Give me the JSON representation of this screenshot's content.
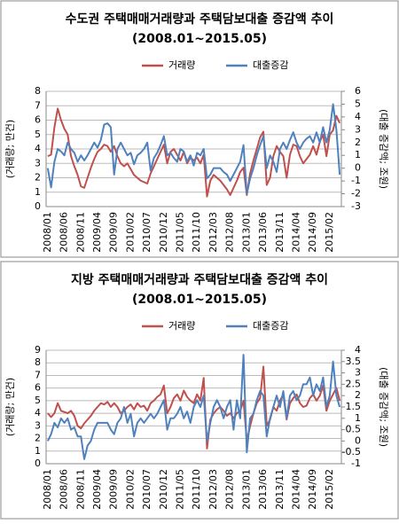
{
  "chart_data": [
    {
      "type": "line",
      "title": "수도권 주택매매거래량과 주택담보대출 증감액 추이",
      "subtitle": "(2008.01~2015.05)",
      "ylabel": "(거래량; 만건)",
      "y2label": "(대출 증감액; 조원)",
      "legend": "top",
      "grid": true,
      "categories": [
        "2008/01",
        null,
        null,
        null,
        null,
        "2008/06",
        null,
        null,
        null,
        null,
        "2008/11",
        null,
        null,
        null,
        null,
        "2009/04",
        null,
        null,
        null,
        null,
        "2009/09",
        null,
        null,
        null,
        null,
        "2010/02",
        null,
        null,
        null,
        null,
        "2010/07",
        null,
        null,
        null,
        null,
        "2010/12",
        null,
        null,
        null,
        null,
        "2011/05",
        null,
        null,
        null,
        null,
        "2011/10",
        null,
        null,
        null,
        null,
        "2012/03",
        null,
        null,
        null,
        null,
        "2012/08",
        null,
        null,
        null,
        null,
        "2013/01",
        null,
        null,
        null,
        null,
        "2013/06",
        null,
        null,
        null,
        null,
        "2013/11",
        null,
        null,
        null,
        null,
        "2014/04",
        null,
        null,
        null,
        null,
        "2014/09",
        null,
        null,
        null,
        null,
        "2015/02",
        null,
        null,
        null
      ],
      "ylim": [
        0,
        8
      ],
      "yticks": [
        0,
        1,
        2,
        3,
        4,
        5,
        6,
        7,
        8
      ],
      "y2lim": [
        -3,
        6
      ],
      "y2ticks": [
        -3,
        -2,
        -1,
        0,
        1,
        2,
        3,
        4,
        5,
        6
      ],
      "series": [
        {
          "name": "거래량",
          "color": "#c0504d",
          "values": [
            3.5,
            3.6,
            5.5,
            6.8,
            6.0,
            5.4,
            5.0,
            3.5,
            2.8,
            2.2,
            1.4,
            1.3,
            2.0,
            2.7,
            3.3,
            3.8,
            4.0,
            4.3,
            4.2,
            3.8,
            4.2,
            3.5,
            3.0,
            2.8,
            3.0,
            2.6,
            2.2,
            2.0,
            1.8,
            1.7,
            1.6,
            2.3,
            2.8,
            3.3,
            3.8,
            4.3,
            3.0,
            3.8,
            4.0,
            3.6,
            3.2,
            3.8,
            3.0,
            3.4,
            3.2,
            3.4,
            3.0,
            3.6,
            0.7,
            1.8,
            2.2,
            2.0,
            1.8,
            1.5,
            1.2,
            0.8,
            1.3,
            1.8,
            2.4,
            2.7,
            0.8,
            2.3,
            3.2,
            4.0,
            4.8,
            5.2,
            1.5,
            2.0,
            3.5,
            4.2,
            3.8,
            3.5,
            2.0,
            3.6,
            4.3,
            4.2,
            3.5,
            3.0,
            3.3,
            3.6,
            4.2,
            3.6,
            4.5,
            5.0,
            3.5,
            5.0,
            5.3,
            6.3,
            5.8
          ]
        },
        {
          "name": "대출증감",
          "color": "#4f81bd",
          "axis": "y2",
          "values": [
            0,
            -1.5,
            0.5,
            1.5,
            1.3,
            1.0,
            2.0,
            1.5,
            1.2,
            0.5,
            1.0,
            0.6,
            1.0,
            1.5,
            2.0,
            1.6,
            2.2,
            3.4,
            3.5,
            3.2,
            -0.5,
            1.5,
            2.0,
            1.5,
            1.0,
            1.2,
            0.3,
            1.0,
            1.2,
            1.5,
            2.0,
            -0.2,
            0.8,
            1.2,
            1.8,
            2.5,
            1.0,
            1.2,
            0.8,
            0.5,
            1.5,
            1.3,
            0.5,
            1.0,
            0.2,
            1.2,
            1.0,
            1.5,
            -0.8,
            -0.5,
            0,
            0,
            0,
            -0.3,
            -0.5,
            -1,
            -0.5,
            0,
            0.5,
            1.8,
            -2.0,
            -0.8,
            0,
            1.0,
            1.8,
            2.5,
            0,
            1.0,
            0.5,
            -0.3,
            1.5,
            2.0,
            1.5,
            2.2,
            2.8,
            2.0,
            1.5,
            2.0,
            2.3,
            2.5,
            2.0,
            2.8,
            2.0,
            3.2,
            2.0,
            3.0,
            5.0,
            3.0,
            -0.5
          ]
        }
      ]
    },
    {
      "type": "line",
      "title": "지방 주택매매거래량과 주택담보대출 증감액 추이",
      "subtitle": "(2008.01~2015.05)",
      "ylabel": "(거래량; 만건)",
      "y2label": "(대출 증감액; 조원)",
      "legend": "top",
      "grid": true,
      "categories": [
        "2008/01",
        null,
        null,
        null,
        null,
        "2008/06",
        null,
        null,
        null,
        null,
        "2008/11",
        null,
        null,
        null,
        null,
        "2009/04",
        null,
        null,
        null,
        null,
        "2009/09",
        null,
        null,
        null,
        null,
        "2010/02",
        null,
        null,
        null,
        null,
        "2010/07",
        null,
        null,
        null,
        null,
        "2010/12",
        null,
        null,
        null,
        null,
        "2011/05",
        null,
        null,
        null,
        null,
        "2011/10",
        null,
        null,
        null,
        null,
        "2012/03",
        null,
        null,
        null,
        null,
        "2012/08",
        null,
        null,
        null,
        null,
        "2013/01",
        null,
        null,
        null,
        null,
        "2013/06",
        null,
        null,
        null,
        null,
        "2013/11",
        null,
        null,
        null,
        null,
        "2014/04",
        null,
        null,
        null,
        null,
        "2014/09",
        null,
        null,
        null,
        null,
        "2015/02",
        null,
        null,
        null
      ],
      "ylim": [
        0,
        9
      ],
      "yticks": [
        0,
        1,
        2,
        3,
        4,
        5,
        6,
        7,
        8,
        9
      ],
      "y2lim": [
        -1,
        4
      ],
      "y2ticks": [
        -1,
        -0.5,
        0,
        0.5,
        1,
        1.5,
        2,
        2.5,
        3,
        3.5,
        4
      ],
      "series": [
        {
          "name": "거래량",
          "color": "#c0504d",
          "values": [
            4.0,
            3.7,
            4.0,
            4.8,
            4.2,
            4.1,
            4.0,
            4.2,
            3.8,
            3.0,
            2.8,
            3.2,
            3.5,
            3.8,
            4.2,
            4.5,
            4.8,
            4.7,
            4.9,
            4.5,
            4.8,
            4.5,
            4.0,
            4.2,
            4.5,
            4.7,
            4.3,
            4.8,
            4.5,
            4.6,
            4.2,
            4.8,
            5.0,
            5.3,
            5.5,
            6.2,
            4.0,
            4.5,
            5.2,
            5.5,
            5.0,
            5.8,
            5.3,
            5.0,
            4.8,
            5.5,
            5.0,
            6.8,
            1.2,
            3.5,
            4.0,
            4.3,
            4.5,
            4.2,
            3.8,
            4.0,
            3.6,
            4.0,
            4.2,
            5.0,
            1.8,
            3.0,
            4.0,
            4.8,
            5.2,
            7.7,
            3.0,
            3.5,
            4.5,
            4.2,
            5.0,
            5.5,
            3.5,
            4.8,
            5.2,
            5.5,
            4.8,
            4.5,
            4.6,
            5.2,
            5.5,
            5.0,
            5.4,
            6.2,
            4.2,
            5.0,
            5.5,
            6.0,
            5.0
          ]
        },
        {
          "name": "대출증감",
          "color": "#4f81bd",
          "axis": "y2",
          "values": [
            0,
            0.3,
            0.8,
            0.6,
            1.0,
            0.8,
            1.0,
            0.5,
            0.6,
            0.2,
            0.2,
            -0.8,
            -0.2,
            0,
            0.5,
            0.8,
            0.8,
            0.8,
            0.8,
            0.5,
            0.3,
            0.8,
            1.0,
            1.5,
            0.8,
            1.2,
            0.2,
            0.8,
            1.0,
            0.8,
            1.0,
            1.2,
            1.0,
            1.2,
            1.5,
            1.8,
            0.5,
            1.0,
            1.0,
            1.2,
            1.5,
            1.0,
            1.3,
            0.8,
            1.5,
            1.8,
            1.5,
            2.0,
            0,
            0.8,
            1.5,
            1.8,
            1.5,
            1.0,
            1.5,
            1.8,
            0.5,
            1.8,
            1.0,
            3.8,
            -0.5,
            1.0,
            1.2,
            1.8,
            2.2,
            2.0,
            0.2,
            1.0,
            1.5,
            2.0,
            1.5,
            2.2,
            1.0,
            2.0,
            2.2,
            1.8,
            2.0,
            2.5,
            2.5,
            2.8,
            2.0,
            2.5,
            2.2,
            2.8,
            1.5,
            2.0,
            3.5,
            2.0,
            1.5
          ]
        }
      ]
    }
  ]
}
